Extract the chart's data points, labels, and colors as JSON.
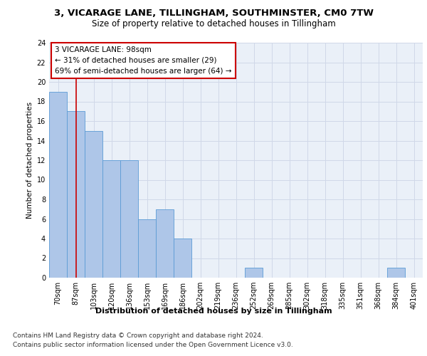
{
  "title_line1": "3, VICARAGE LANE, TILLINGHAM, SOUTHMINSTER, CM0 7TW",
  "title_line2": "Size of property relative to detached houses in Tillingham",
  "xlabel": "Distribution of detached houses by size in Tillingham",
  "ylabel": "Number of detached properties",
  "categories": [
    "70sqm",
    "87sqm",
    "103sqm",
    "120sqm",
    "136sqm",
    "153sqm",
    "169sqm",
    "186sqm",
    "202sqm",
    "219sqm",
    "236sqm",
    "252sqm",
    "269sqm",
    "285sqm",
    "302sqm",
    "318sqm",
    "335sqm",
    "351sqm",
    "368sqm",
    "384sqm",
    "401sqm"
  ],
  "values": [
    19,
    17,
    15,
    12,
    12,
    6,
    7,
    4,
    0,
    0,
    0,
    1,
    0,
    0,
    0,
    0,
    0,
    0,
    0,
    1,
    0
  ],
  "bar_color": "#aec6e8",
  "bar_edge_color": "#5b9bd5",
  "annotation_title": "3 VICARAGE LANE: 98sqm",
  "annotation_line1": "← 31% of detached houses are smaller (29)",
  "annotation_line2": "69% of semi-detached houses are larger (64) →",
  "annotation_box_color": "#ffffff",
  "annotation_box_edge_color": "#cc0000",
  "vline_color": "#cc0000",
  "ylim": [
    0,
    24
  ],
  "yticks": [
    0,
    2,
    4,
    6,
    8,
    10,
    12,
    14,
    16,
    18,
    20,
    22,
    24
  ],
  "grid_color": "#d0d8e8",
  "background_color": "#eaf0f8",
  "footnote1": "Contains HM Land Registry data © Crown copyright and database right 2024.",
  "footnote2": "Contains public sector information licensed under the Open Government Licence v3.0.",
  "title_fontsize": 9.5,
  "subtitle_fontsize": 8.5,
  "axis_label_fontsize": 8,
  "tick_fontsize": 7,
  "annotation_fontsize": 7.5,
  "footnote_fontsize": 6.5,
  "ylabel_fontsize": 7.5
}
